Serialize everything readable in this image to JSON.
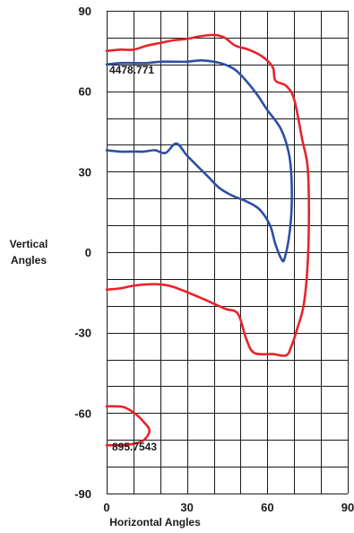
{
  "chart_data": {
    "type": "line",
    "title": "",
    "xlabel": "Horizontal Angles",
    "ylabel": "Vertical Angles",
    "xlim": [
      0,
      90
    ],
    "ylim": [
      -90,
      90
    ],
    "x_ticks": [
      0,
      30,
      60,
      90
    ],
    "y_ticks": [
      90,
      60,
      30,
      0,
      -30,
      -60,
      -90
    ],
    "grid": true,
    "colors": {
      "red": "#e8232a",
      "blue": "#2c4fa6",
      "grid": "#1a1a1a",
      "text": "#1a1a1a"
    },
    "annotations": [
      {
        "text": "4478.771",
        "x": 1,
        "y": 66.5
      },
      {
        "text": "895.7543",
        "x": 2,
        "y": -74
      }
    ],
    "series": [
      {
        "color": "#e8232a",
        "points": [
          [
            0,
            75
          ],
          [
            5,
            75.5
          ],
          [
            10,
            75.5
          ],
          [
            15,
            77
          ],
          [
            20,
            78
          ],
          [
            25,
            79
          ],
          [
            30,
            79.5
          ],
          [
            35,
            80.5
          ],
          [
            40,
            81
          ],
          [
            44,
            80
          ],
          [
            48,
            77
          ],
          [
            53,
            75.5
          ],
          [
            58,
            73
          ],
          [
            62,
            69
          ],
          [
            63,
            64
          ],
          [
            67,
            62
          ],
          [
            70,
            57
          ],
          [
            73,
            42
          ],
          [
            75,
            32
          ],
          [
            75.5,
            15
          ],
          [
            75,
            -5
          ],
          [
            73.5,
            -20
          ],
          [
            71,
            -29
          ],
          [
            69,
            -35
          ],
          [
            67,
            -38.5
          ],
          [
            62,
            -38
          ],
          [
            55,
            -37.5
          ],
          [
            52,
            -32
          ],
          [
            49,
            -23
          ],
          [
            44,
            -21
          ],
          [
            35,
            -17
          ],
          [
            25,
            -13
          ],
          [
            20,
            -12
          ],
          [
            15,
            -12
          ],
          [
            10,
            -12.5
          ],
          [
            5,
            -13.5
          ],
          [
            0,
            -14
          ]
        ]
      },
      {
        "color": "#2c4fa6",
        "points": [
          [
            0,
            70
          ],
          [
            5,
            70.5
          ],
          [
            10,
            70.5
          ],
          [
            15,
            70.5
          ],
          [
            20,
            71
          ],
          [
            25,
            71
          ],
          [
            30,
            71
          ],
          [
            35,
            71.5
          ],
          [
            40,
            71
          ],
          [
            44,
            70
          ],
          [
            48,
            68
          ],
          [
            52,
            64
          ],
          [
            56,
            59
          ],
          [
            60,
            53
          ],
          [
            65,
            46
          ],
          [
            68,
            37
          ],
          [
            69,
            28
          ],
          [
            69,
            15
          ],
          [
            68,
            5
          ],
          [
            66.5,
            -2
          ],
          [
            65.5,
            -3
          ],
          [
            63,
            3
          ],
          [
            61,
            10
          ],
          [
            57,
            16
          ],
          [
            52,
            19
          ],
          [
            47,
            21
          ],
          [
            42,
            24
          ],
          [
            38,
            28
          ],
          [
            34,
            32
          ],
          [
            30,
            36
          ],
          [
            26,
            40.5
          ],
          [
            22,
            37
          ],
          [
            18,
            38
          ],
          [
            14,
            37.5
          ],
          [
            10,
            37.5
          ],
          [
            5,
            37.5
          ],
          [
            0,
            38
          ]
        ]
      },
      {
        "color": "#e8232a",
        "points": [
          [
            0,
            -57.5
          ],
          [
            4,
            -57.5
          ],
          [
            7,
            -58
          ],
          [
            11,
            -60.5
          ],
          [
            14,
            -63.5
          ],
          [
            16,
            -66.5
          ],
          [
            14,
            -70
          ],
          [
            10,
            -71.5
          ],
          [
            5,
            -72
          ],
          [
            0,
            -72
          ]
        ]
      }
    ]
  }
}
